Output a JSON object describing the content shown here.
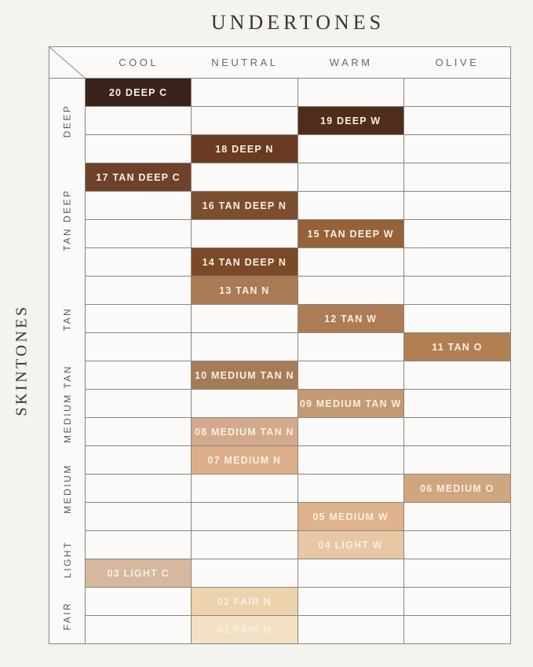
{
  "title": "UNDERTONES",
  "side_title": "SKINTONES",
  "chart_data": {
    "type": "table",
    "title": "UNDERTONES",
    "xlabel": "UNDERTONES",
    "ylabel": "SKINTONES",
    "columns": [
      "COOL",
      "NEUTRAL",
      "WARM",
      "OLIVE"
    ],
    "row_groups": [
      {
        "label": "DEEP",
        "rows": 3
      },
      {
        "label": "TAN DEEP",
        "rows": 4
      },
      {
        "label": "TAN",
        "rows": 3
      },
      {
        "label": "MEDIUM TAN",
        "rows": 3
      },
      {
        "label": "MEDIUM",
        "rows": 3
      },
      {
        "label": "LIGHT",
        "rows": 2
      },
      {
        "label": "FAIR",
        "rows": 2
      }
    ],
    "rows": [
      {
        "label": "20 DEEP C",
        "column": "COOL",
        "color": "#39231a"
      },
      {
        "label": "19 DEEP W",
        "column": "WARM",
        "color": "#4e2d1a"
      },
      {
        "label": "18 DEEP N",
        "column": "NEUTRAL",
        "color": "#6a3b22"
      },
      {
        "label": "17 TAN DEEP C",
        "column": "COOL",
        "color": "#6e4229"
      },
      {
        "label": "16 TAN DEEP N",
        "column": "NEUTRAL",
        "color": "#7c4e2e"
      },
      {
        "label": "15 TAN DEEP W",
        "column": "WARM",
        "color": "#97613a"
      },
      {
        "label": "14 TAN DEEP N",
        "column": "NEUTRAL",
        "color": "#7a4927"
      },
      {
        "label": "13 TAN N",
        "column": "NEUTRAL",
        "color": "#a97a53"
      },
      {
        "label": "12 TAN W",
        "column": "WARM",
        "color": "#ad7c54"
      },
      {
        "label": "11 TAN O",
        "column": "OLIVE",
        "color": "#b08053"
      },
      {
        "label": "10 MEDIUM TAN N",
        "column": "NEUTRAL",
        "color": "#a67c58"
      },
      {
        "label": "09 MEDIUM TAN W",
        "column": "WARM",
        "color": "#c39a72"
      },
      {
        "label": "08 MEDIUM TAN N",
        "column": "NEUTRAL",
        "color": "#d3aa8b"
      },
      {
        "label": "07 MEDIUM N",
        "column": "NEUTRAL",
        "color": "#dcae89"
      },
      {
        "label": "06 MEDIUM O",
        "column": "OLIVE",
        "color": "#d0a67e"
      },
      {
        "label": "05 MEDIUM W",
        "column": "WARM",
        "color": "#dfb28b"
      },
      {
        "label": "04 LIGHT W",
        "column": "WARM",
        "color": "#e7c7a4"
      },
      {
        "label": "03 LIGHT C",
        "column": "COOL",
        "color": "#d5b89e"
      },
      {
        "label": "02 FAIR N",
        "column": "NEUTRAL",
        "color": "#edd2ae"
      },
      {
        "label": "01 FAIR N",
        "column": "NEUTRAL",
        "color": "#f2e1c5"
      }
    ],
    "swatch_text_color": "#f7efe3",
    "grid_line_color": "#8a8681",
    "empty_cell_color": "#fbfaf8",
    "background_color": "#f5f3f0"
  }
}
